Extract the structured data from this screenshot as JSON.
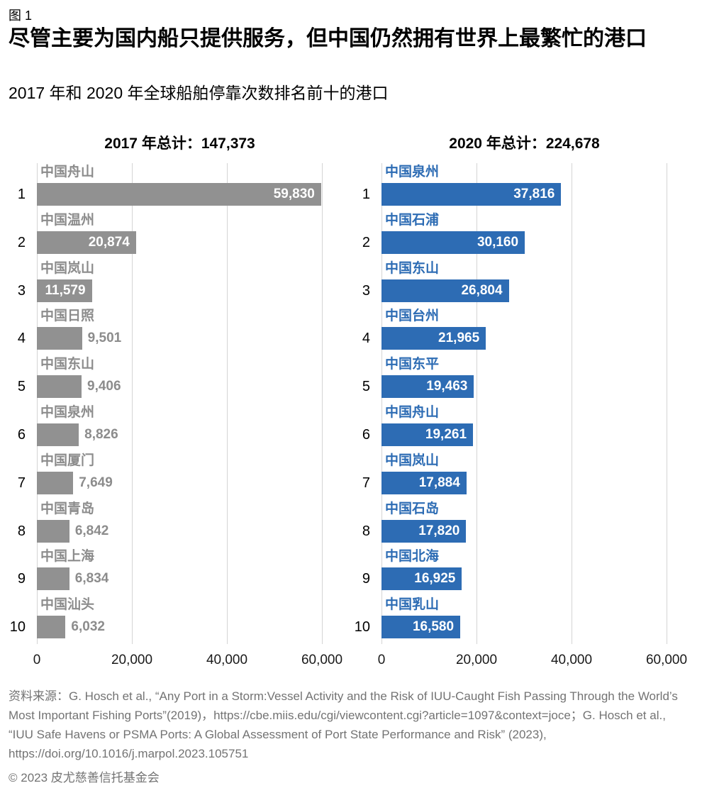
{
  "figure_label": "图 1",
  "title": "尽管主要为国内船只提供服务，但中国仍然拥有世界上最繁忙的港口",
  "subtitle": "2017 年和 2020 年全球船舶停靠次数排名前十的港口",
  "source_note": "资料来源：G. Hosch et al., “Any Port in a Storm:Vessel Activity and the Risk of IUU-Caught Fish Passing Through the World’s Most Important Fishing Ports”(2019)，https://cbe.miis.edu/cgi/viewcontent.cgi?article=1097&context=joce；G. Hosch et al., “IUU Safe Havens or PSMA Ports: A Global Assessment of Port State Performance and Risk” (2023), https://doi.org/10.1016/j.marpol.2023.105751",
  "copyright": "© 2023 皮尤慈善信托基金会",
  "colors": {
    "bar_gray": "#919191",
    "gray_text": "#8c8c8c",
    "bar_blue": "#2d6cb4",
    "blue_text": "#2d6cb4",
    "gridline": "#d4d4d4",
    "axis_text": "#1a1a1a",
    "footer_text": "#737373",
    "value_inside": "#ffffff"
  },
  "chart_data": [
    {
      "type": "bar",
      "orientation": "horizontal",
      "title": "2017 年总计：147,373",
      "year": "2017",
      "total": 147373,
      "bar_color": "#919191",
      "label_color": "#8c8c8c",
      "ranks": [
        "1",
        "2",
        "3",
        "4",
        "5",
        "6",
        "7",
        "8",
        "9",
        "10"
      ],
      "categories": [
        "中国舟山",
        "中国温州",
        "中国岚山",
        "中国日照",
        "中国东山",
        "中国泉州",
        "中国厦门",
        "中国青岛",
        "中国上海",
        "中国汕头"
      ],
      "values": [
        59830,
        20874,
        11579,
        9501,
        9406,
        8826,
        7649,
        6842,
        6834,
        6032
      ],
      "value_labels": [
        "59,830",
        "20,874",
        "11,579",
        "9,501",
        "9,406",
        "8,826",
        "7,649",
        "6,842",
        "6,834",
        "6,032"
      ],
      "xlabel": "",
      "ylabel": "",
      "xlim": [
        0,
        60000
      ],
      "xticks": [
        0,
        20000,
        40000,
        60000
      ],
      "xtick_labels": [
        "0",
        "20,000",
        "40,000",
        "60,000"
      ],
      "grid": "vertical-only",
      "legend": "none"
    },
    {
      "type": "bar",
      "orientation": "horizontal",
      "title": "2020 年总计：224,678",
      "year": "2020",
      "total": 224678,
      "bar_color": "#2d6cb4",
      "label_color": "#2d6cb4",
      "ranks": [
        "1",
        "2",
        "3",
        "4",
        "5",
        "6",
        "7",
        "8",
        "9",
        "10"
      ],
      "categories": [
        "中国泉州",
        "中国石浦",
        "中国东山",
        "中国台州",
        "中国东平",
        "中国舟山",
        "中国岚山",
        "中国石岛",
        "中国北海",
        "中国乳山"
      ],
      "values": [
        37816,
        30160,
        26804,
        21965,
        19463,
        19261,
        17884,
        17820,
        16925,
        16580
      ],
      "value_labels": [
        "37,816",
        "30,160",
        "26,804",
        "21,965",
        "19,463",
        "19,261",
        "17,884",
        "17,820",
        "16,925",
        "16,580"
      ],
      "xlabel": "",
      "ylabel": "",
      "xlim": [
        0,
        60000
      ],
      "xticks": [
        0,
        20000,
        40000,
        60000
      ],
      "xtick_labels": [
        "0",
        "20,000",
        "40,000",
        "60,000"
      ],
      "grid": "vertical-only",
      "legend": "none"
    }
  ]
}
